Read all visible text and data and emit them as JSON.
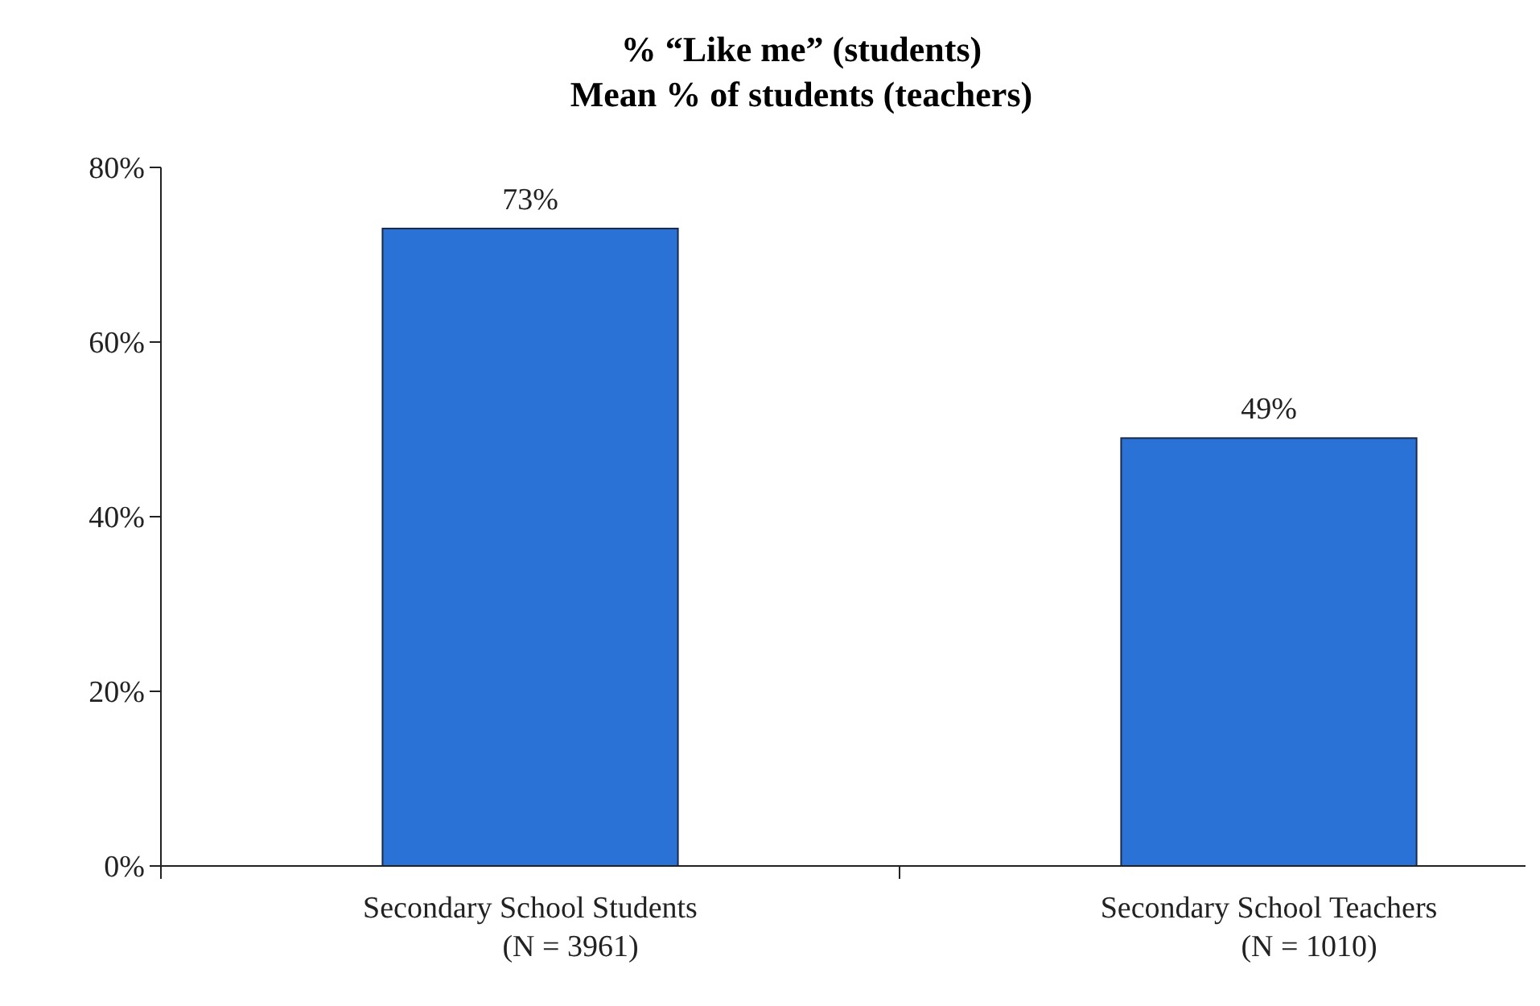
{
  "chart_data": {
    "type": "bar",
    "title": "% “Like me” (students)",
    "subtitle": "Mean % of students (teachers)",
    "categories": [
      "Secondary School Students\n(N = 3961)",
      "Secondary School Teachers\n(N = 1010)"
    ],
    "values": [
      73,
      49
    ],
    "color": "#2a72d6",
    "value_labels": [
      "73%",
      "49%"
    ],
    "ylim": [
      0,
      80
    ],
    "yticks": [
      {
        "value": 0,
        "label": "0%"
      },
      {
        "value": 20,
        "label": "20%"
      },
      {
        "value": 40,
        "label": "40%"
      },
      {
        "value": 60,
        "label": "60%"
      },
      {
        "value": 80,
        "label": "80%"
      }
    ],
    "grid": false
  }
}
